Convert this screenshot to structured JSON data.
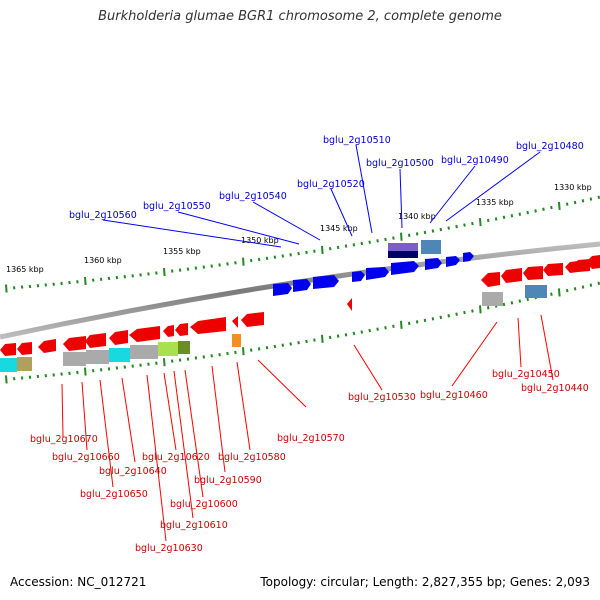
{
  "title": "Burkholderia glumae BGR1 chromosome 2, complete genome",
  "footer": {
    "accession": "Accession: NC_012721",
    "summary": "Topology: circular; Length: 2,827,355 bp; Genes: 2,093"
  },
  "colors": {
    "backbone": "#8a8a8a",
    "tick": "#228822",
    "forward_label": "#0000cc",
    "reverse_label": "#cc0000"
  },
  "scale_labels": [
    "1330 kbp",
    "1335 kbp",
    "1340 kbp",
    "1345 kbp",
    "1350 kbp",
    "1355 kbp",
    "1360 kbp",
    "1365 kbp"
  ],
  "forward_genes": [
    "bglu_2g10480",
    "bglu_2g10490",
    "bglu_2g10500",
    "bglu_2g10510",
    "bglu_2g10520",
    "bglu_2g10540",
    "bglu_2g10550",
    "bglu_2g10560"
  ],
  "reverse_genes": [
    "bglu_2g10440",
    "bglu_2g10450",
    "bglu_2g10460",
    "bglu_2g10530",
    "bglu_2g10570",
    "bglu_2g10580",
    "bglu_2g10590",
    "bglu_2g10600",
    "bglu_2g10610",
    "bglu_2g10620",
    "bglu_2g10630",
    "bglu_2g10640",
    "bglu_2g10650",
    "bglu_2g10660",
    "bglu_2g10670"
  ]
}
